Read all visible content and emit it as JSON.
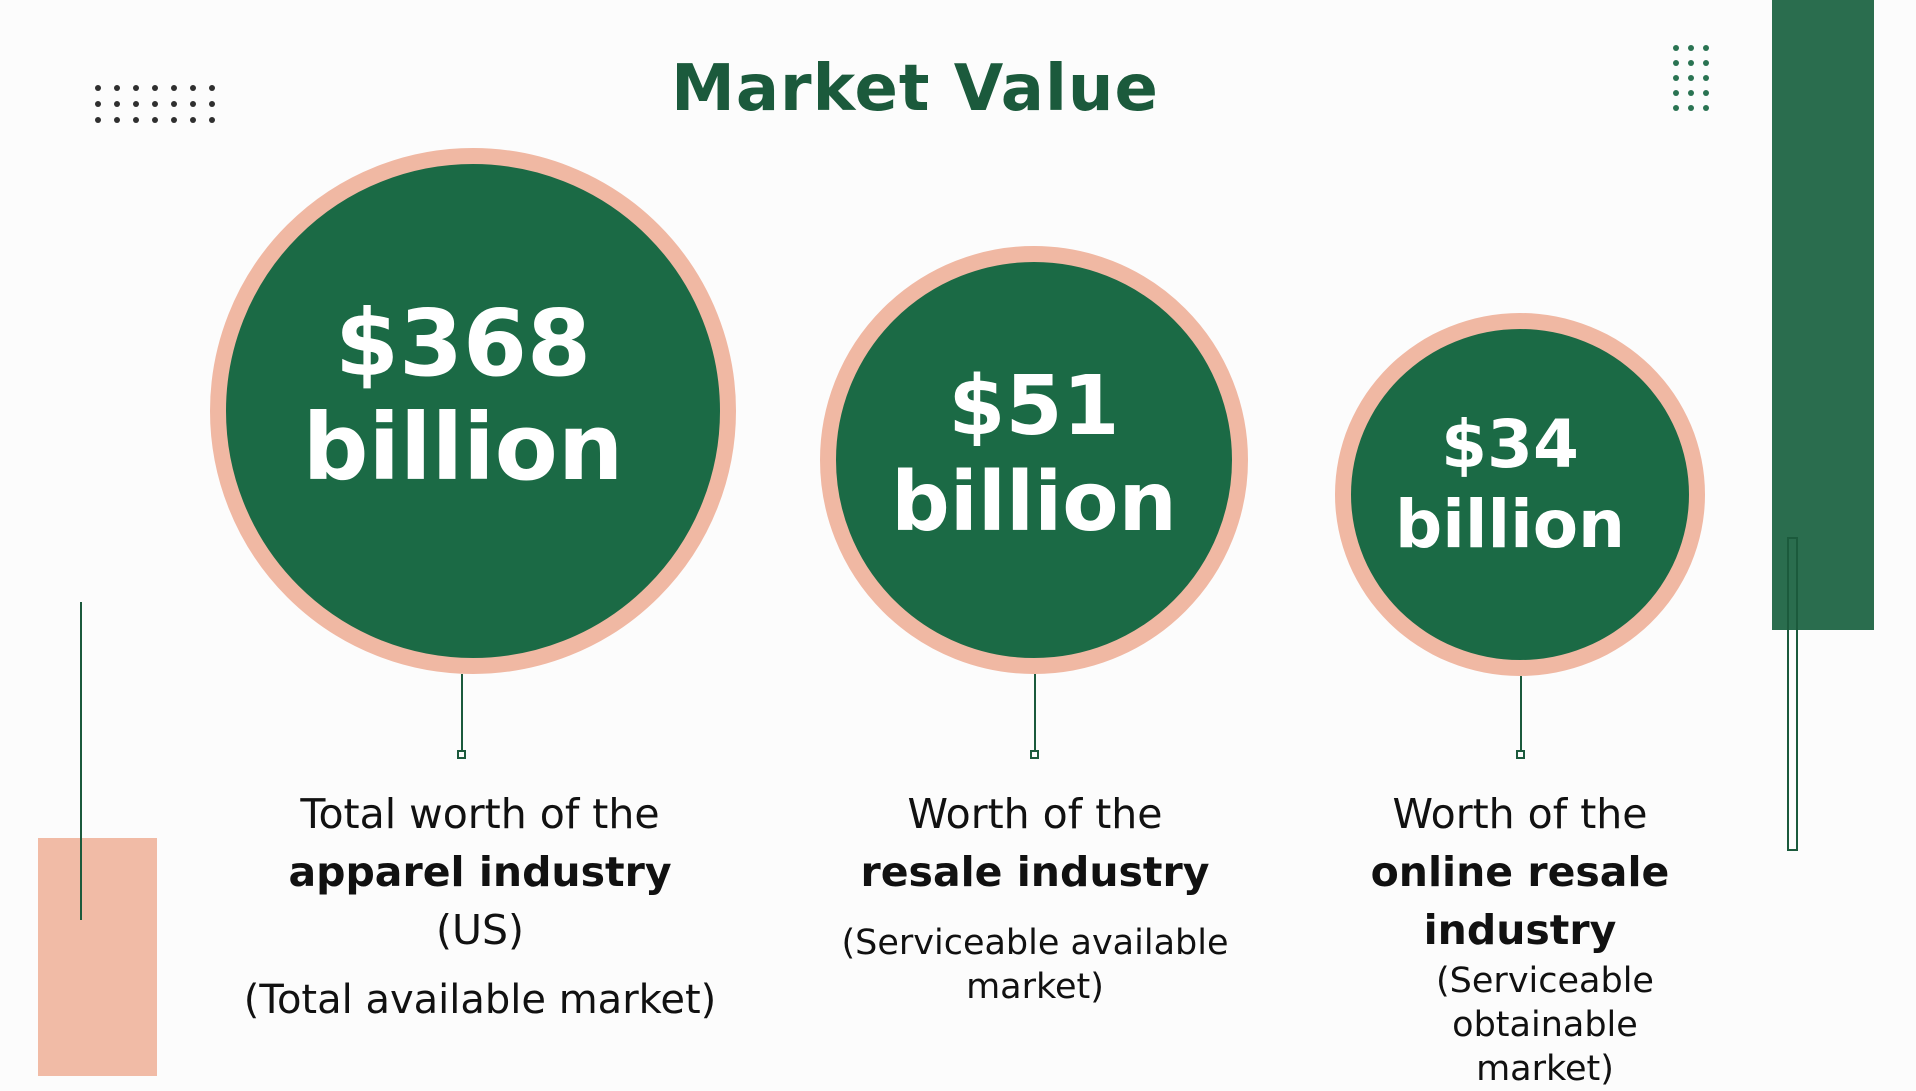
{
  "title": "Market Value",
  "colors": {
    "dark_green": "#1b6a45",
    "title_green": "#1b5a3c",
    "pink": "#f0b8a3",
    "background": "#fcfcfc"
  },
  "markets": [
    {
      "amount": "$368",
      "unit": "billion",
      "caption_line1": "Total worth of the",
      "caption_bold": "apparel industry",
      "caption_line3": "(US)",
      "note": "(Total available market)"
    },
    {
      "amount": "$51",
      "unit": "billion",
      "caption_line1": "Worth of the",
      "caption_bold": "resale industry",
      "note_line1": "(Serviceable available",
      "note_line2": "market)"
    },
    {
      "amount": "$34",
      "unit": "billion",
      "caption_line1": "Worth of the",
      "caption_bold_line1": "online resale",
      "caption_bold_line2": "industry",
      "note_line1": "(Serviceable obtainable",
      "note_line2": "market)"
    }
  ]
}
